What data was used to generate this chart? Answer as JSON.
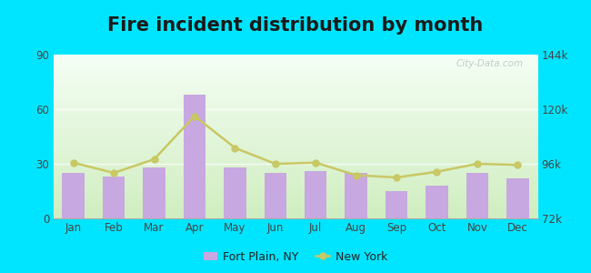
{
  "title": "Fire incident distribution by month",
  "months": [
    "Jan",
    "Feb",
    "Mar",
    "Apr",
    "May",
    "Jun",
    "Jul",
    "Aug",
    "Sep",
    "Oct",
    "Nov",
    "Dec"
  ],
  "fort_plain_values": [
    25,
    23,
    28,
    68,
    28,
    25,
    26,
    25,
    15,
    18,
    25,
    22
  ],
  "new_york_values": [
    96500,
    92000,
    98000,
    117000,
    103000,
    96000,
    96500,
    91000,
    90000,
    92500,
    96000,
    95500
  ],
  "bar_color": "#c8a8e0",
  "line_color": "#c8c864",
  "line_marker": "o",
  "left_ylim": [
    0,
    90
  ],
  "left_yticks": [
    0,
    30,
    60,
    90
  ],
  "right_ylim": [
    72000,
    144000
  ],
  "right_yticks": [
    72000,
    96000,
    120000,
    144000
  ],
  "right_yticklabels": [
    "72k",
    "96k",
    "120k",
    "144k"
  ],
  "bg_top_color": "#f5fef5",
  "bg_bottom_color": "#d0eec0",
  "outer_background": "#00e5ff",
  "title_fontsize": 15,
  "watermark_text": "City-Data.com",
  "legend_fort_plain": "Fort Plain, NY",
  "legend_new_york": "New York",
  "tick_color": "#444444"
}
